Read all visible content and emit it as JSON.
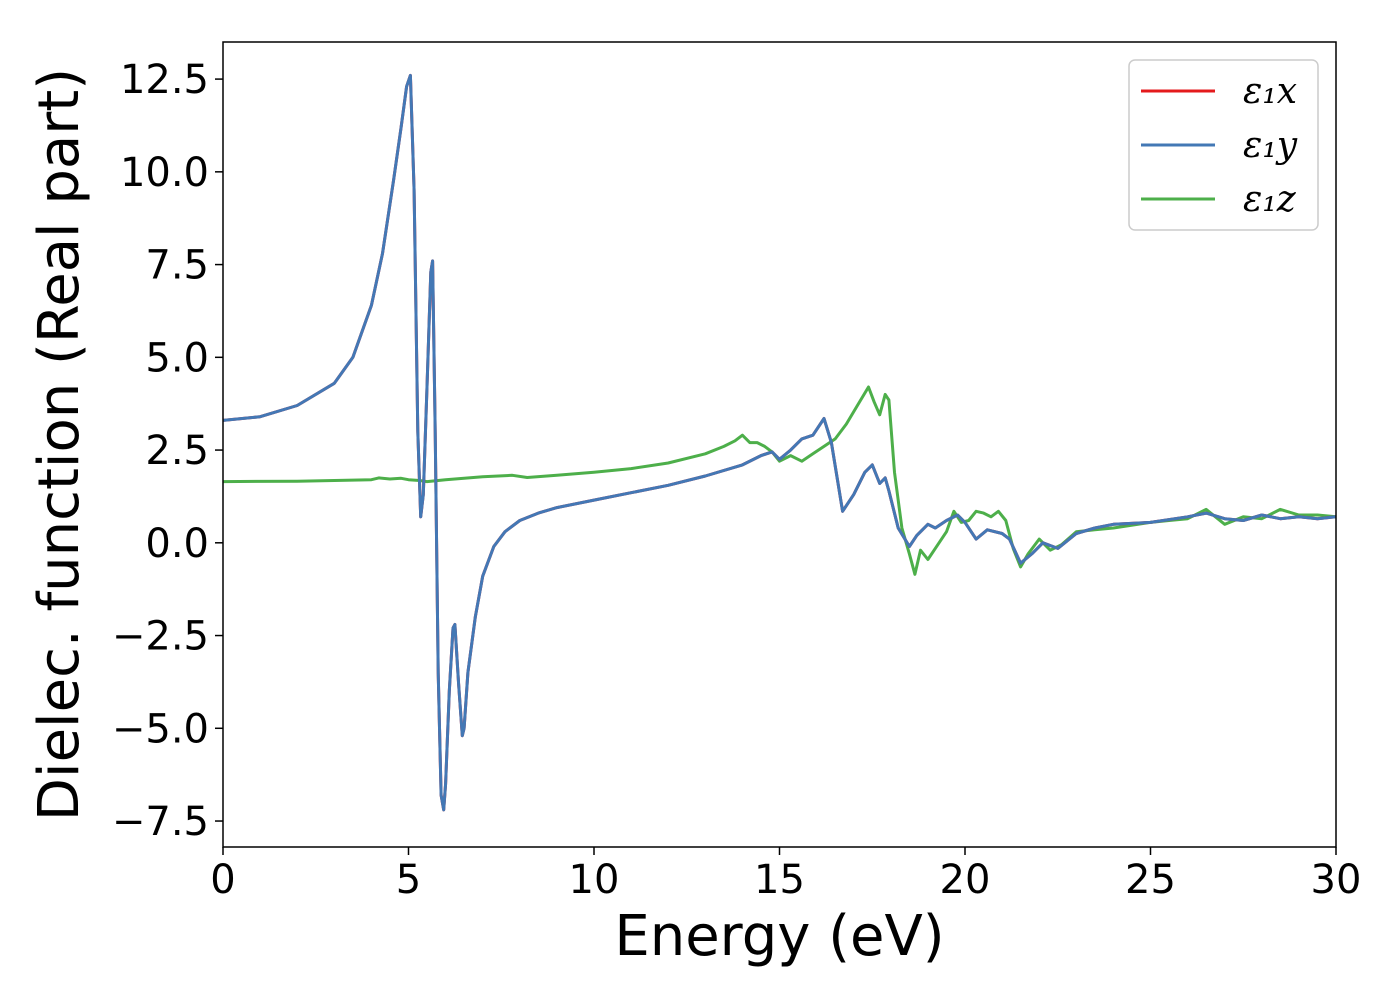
{
  "chart_data": {
    "type": "line",
    "title": "",
    "xlabel": "Energy (eV)",
    "ylabel": "Dielec. function (Real part)",
    "xlim": [
      0,
      30
    ],
    "ylim": [
      -8.2,
      13.5
    ],
    "xticks": [
      0,
      5,
      10,
      15,
      20,
      25,
      30
    ],
    "xtick_labels": [
      "0",
      "5",
      "10",
      "15",
      "20",
      "25",
      "30"
    ],
    "yticks": [
      -7.5,
      -5.0,
      -2.5,
      0.0,
      2.5,
      5.0,
      7.5,
      10.0,
      12.5
    ],
    "ytick_labels": [
      "−7.5",
      "−5.0",
      "−2.5",
      "0.0",
      "2.5",
      "5.0",
      "7.5",
      "10.0",
      "12.5"
    ],
    "grid": false,
    "legend_position": "top-right",
    "series": [
      {
        "name": "ε₁x",
        "color": "#e41a1c",
        "x": [
          0,
          1,
          2,
          3,
          3.5,
          4,
          4.3,
          4.6,
          4.8,
          4.95,
          5.05,
          5.15,
          5.25,
          5.33,
          5.4,
          5.5,
          5.6,
          5.65,
          5.72,
          5.8,
          5.88,
          5.95,
          6.0,
          6.1,
          6.2,
          6.25,
          6.35,
          6.45,
          6.5,
          6.6,
          6.8,
          7.0,
          7.3,
          7.6,
          8.0,
          8.5,
          9,
          10,
          11,
          12,
          13,
          14,
          14.5,
          14.8,
          15,
          15.3,
          15.6,
          15.9,
          16.2,
          16.4,
          16.7,
          17.0,
          17.3,
          17.5,
          17.7,
          17.85,
          17.95,
          18.2,
          18.5,
          18.7,
          19.0,
          19.2,
          19.5,
          19.8,
          20.0,
          20.3,
          20.6,
          21.0,
          21.2,
          21.5,
          21.8,
          22.1,
          22.5,
          23,
          23.5,
          24,
          25,
          26,
          26.5,
          27,
          27.5,
          28,
          28.5,
          29,
          29.5,
          30
        ],
        "y": [
          3.3,
          3.4,
          3.7,
          4.3,
          5.0,
          6.4,
          7.8,
          9.8,
          11.2,
          12.3,
          12.6,
          9.5,
          3.0,
          0.7,
          1.3,
          4.2,
          7.3,
          7.6,
          3.0,
          -3.5,
          -6.8,
          -7.2,
          -6.5,
          -4.0,
          -2.3,
          -2.2,
          -3.8,
          -5.2,
          -5.0,
          -3.5,
          -2.0,
          -0.9,
          -0.1,
          0.3,
          0.6,
          0.8,
          0.95,
          1.15,
          1.35,
          1.55,
          1.8,
          2.1,
          2.35,
          2.45,
          2.25,
          2.5,
          2.8,
          2.9,
          3.35,
          2.7,
          0.85,
          1.3,
          1.9,
          2.1,
          1.6,
          1.75,
          1.4,
          0.4,
          -0.1,
          0.2,
          0.5,
          0.4,
          0.6,
          0.75,
          0.55,
          0.1,
          0.35,
          0.25,
          0.1,
          -0.55,
          -0.3,
          0.0,
          -0.15,
          0.25,
          0.4,
          0.5,
          0.55,
          0.7,
          0.8,
          0.65,
          0.6,
          0.75,
          0.65,
          0.7,
          0.65,
          0.7
        ]
      },
      {
        "name": "ε₁y",
        "color": "#4378b5",
        "x": [
          0,
          1,
          2,
          3,
          3.5,
          4,
          4.3,
          4.6,
          4.8,
          4.95,
          5.05,
          5.15,
          5.25,
          5.33,
          5.4,
          5.5,
          5.6,
          5.65,
          5.72,
          5.8,
          5.88,
          5.95,
          6.0,
          6.1,
          6.2,
          6.25,
          6.35,
          6.45,
          6.5,
          6.6,
          6.8,
          7.0,
          7.3,
          7.6,
          8.0,
          8.5,
          9,
          10,
          11,
          12,
          13,
          14,
          14.5,
          14.8,
          15,
          15.3,
          15.6,
          15.9,
          16.2,
          16.4,
          16.7,
          17.0,
          17.3,
          17.5,
          17.7,
          17.85,
          17.95,
          18.2,
          18.5,
          18.7,
          19.0,
          19.2,
          19.5,
          19.8,
          20.0,
          20.3,
          20.6,
          21.0,
          21.2,
          21.5,
          21.8,
          22.1,
          22.5,
          23,
          23.5,
          24,
          25,
          26,
          26.5,
          27,
          27.5,
          28,
          28.5,
          29,
          29.5,
          30
        ],
        "y": [
          3.3,
          3.4,
          3.7,
          4.3,
          5.0,
          6.4,
          7.8,
          9.8,
          11.2,
          12.3,
          12.6,
          9.5,
          3.0,
          0.7,
          1.3,
          4.2,
          7.3,
          7.6,
          3.0,
          -3.5,
          -6.8,
          -7.2,
          -6.5,
          -4.0,
          -2.3,
          -2.2,
          -3.8,
          -5.2,
          -5.0,
          -3.5,
          -2.0,
          -0.9,
          -0.1,
          0.3,
          0.6,
          0.8,
          0.95,
          1.15,
          1.35,
          1.55,
          1.8,
          2.1,
          2.35,
          2.45,
          2.25,
          2.5,
          2.8,
          2.9,
          3.35,
          2.7,
          0.85,
          1.3,
          1.9,
          2.1,
          1.6,
          1.75,
          1.4,
          0.4,
          -0.1,
          0.2,
          0.5,
          0.4,
          0.6,
          0.75,
          0.55,
          0.1,
          0.35,
          0.25,
          0.1,
          -0.55,
          -0.3,
          0.0,
          -0.15,
          0.25,
          0.4,
          0.5,
          0.55,
          0.7,
          0.8,
          0.65,
          0.6,
          0.75,
          0.65,
          0.7,
          0.65,
          0.7
        ]
      },
      {
        "name": "ε₁z",
        "color": "#4daf4a",
        "x": [
          0,
          2,
          4,
          4.2,
          4.5,
          4.8,
          5.0,
          5.3,
          5.5,
          6,
          7,
          7.8,
          8.2,
          9,
          10,
          11,
          12,
          13,
          13.5,
          13.8,
          14.0,
          14.2,
          14.4,
          14.6,
          14.8,
          15.0,
          15.3,
          15.6,
          15.9,
          16.2,
          16.5,
          16.8,
          17.1,
          17.4,
          17.55,
          17.7,
          17.85,
          17.95,
          18.1,
          18.3,
          18.5,
          18.65,
          18.8,
          19.0,
          19.2,
          19.5,
          19.7,
          19.9,
          20.1,
          20.3,
          20.5,
          20.7,
          20.9,
          21.1,
          21.3,
          21.5,
          21.7,
          22.0,
          22.3,
          22.6,
          23,
          23.5,
          24,
          25,
          25.5,
          26,
          26.5,
          27,
          27.5,
          28,
          28.5,
          29,
          29.5,
          30
        ],
        "y": [
          1.65,
          1.66,
          1.7,
          1.75,
          1.72,
          1.74,
          1.7,
          1.68,
          1.65,
          1.7,
          1.78,
          1.82,
          1.76,
          1.82,
          1.9,
          2.0,
          2.15,
          2.4,
          2.6,
          2.75,
          2.9,
          2.7,
          2.7,
          2.6,
          2.45,
          2.2,
          2.35,
          2.2,
          2.4,
          2.6,
          2.8,
          3.2,
          3.7,
          4.2,
          3.8,
          3.45,
          4.0,
          3.85,
          1.9,
          0.4,
          -0.3,
          -0.85,
          -0.2,
          -0.45,
          -0.15,
          0.3,
          0.85,
          0.55,
          0.6,
          0.85,
          0.8,
          0.7,
          0.85,
          0.6,
          -0.15,
          -0.65,
          -0.3,
          0.1,
          -0.2,
          -0.05,
          0.3,
          0.35,
          0.4,
          0.55,
          0.6,
          0.65,
          0.9,
          0.5,
          0.7,
          0.65,
          0.9,
          0.75,
          0.75,
          0.7
        ]
      }
    ]
  }
}
